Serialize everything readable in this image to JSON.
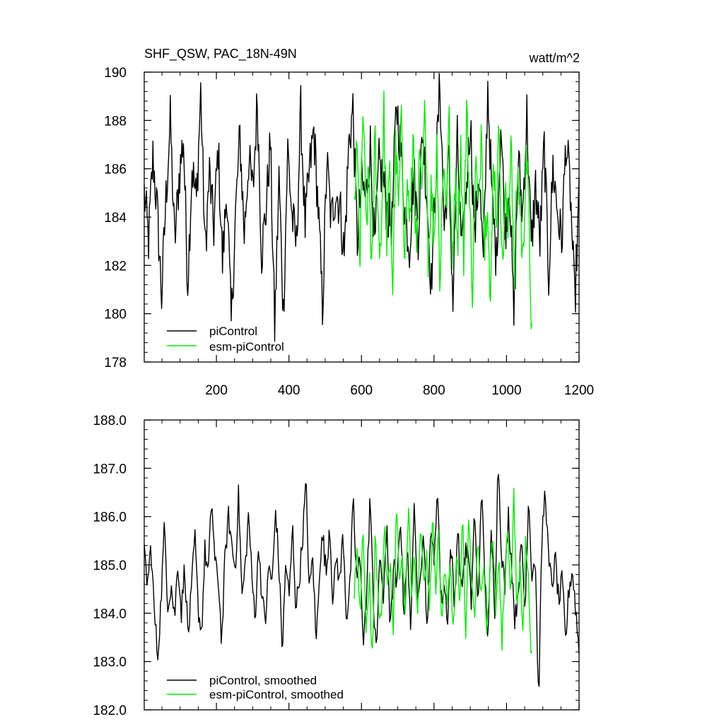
{
  "chart_data": [
    {
      "type": "line",
      "title": "SHF_QSW, PAC_18N-49N",
      "units": "watt/m^2",
      "xlim": [
        1,
        1200
      ],
      "ylim": [
        178,
        190
      ],
      "yticks": [
        178,
        180,
        182,
        184,
        186,
        188,
        190
      ],
      "ytick_labels": [
        "178",
        "180",
        "182",
        "184",
        "186",
        "188",
        "190"
      ],
      "xticks": [
        200,
        400,
        600,
        800,
        1000,
        1200
      ],
      "xtick_labels": [
        "200",
        "400",
        "600",
        "800",
        "1000",
        "1200"
      ],
      "grid": false,
      "legend_placement": "bottom-left",
      "series": [
        {
          "name": "piControl",
          "color": "#000000",
          "x_start": 1,
          "x_end": 1200,
          "mean": 185.0,
          "spread": 1.4,
          "values": [
            185.0,
            183.0,
            186.5,
            184.2,
            180.7,
            184.8,
            188.0,
            182.9,
            185.6,
            187.3,
            181.3,
            186.1,
            184.6,
            189.2,
            182.6,
            185.8,
            183.5,
            186.9,
            182.1,
            185.2,
            179.5,
            184.1,
            187.4,
            183.3,
            186.4,
            185.0,
            188.9,
            182.5,
            184.3,
            187.1,
            179.4,
            185.6,
            180.0,
            186.8,
            184.0,
            182.8,
            188.4,
            183.6,
            185.9,
            187.6,
            184.4,
            180.2,
            186.3,
            183.8,
            185.1,
            184.5,
            182.4,
            186.9,
            188.5,
            183.0,
            185.4,
            184.7,
            187.0,
            182.6,
            186.2,
            185.5,
            184.0,
            183.7,
            188.8,
            186.7,
            184.2,
            182.8,
            185.9,
            183.3,
            187.7,
            184.9,
            181.2,
            185.6,
            189.6,
            183.5,
            186.4,
            180.5,
            187.2,
            182.3,
            185.0,
            188.1,
            183.1,
            186.0,
            181.9,
            189.4,
            184.6,
            182.2,
            187.9,
            183.4,
            185.5,
            179.7,
            186.5,
            184.1,
            188.3,
            182.7,
            185.3,
            183.0,
            187.0,
            181.5,
            186.1,
            184.3,
            182.9,
            187.2,
            185.0,
            180.4,
            184.8
          ]
        },
        {
          "name": "esm-piControl",
          "color": "#00ee00",
          "x_start": 580,
          "x_end": 1070,
          "mean": 184.9,
          "spread": 1.6,
          "values": [
            184.5,
            186.7,
            182.1,
            188.8,
            183.4,
            185.9,
            181.4,
            187.6,
            184.0,
            182.6,
            188.5,
            183.2,
            185.7,
            181.0,
            186.9,
            184.2,
            188.1,
            182.7,
            185.4,
            183.6,
            187.8,
            181.8,
            186.1,
            184.8,
            189.0,
            182.4,
            185.2,
            183.0,
            187.3,
            180.8,
            186.6,
            184.4,
            188.3,
            181.5,
            185.8,
            183.3,
            187.0,
            182.2,
            189.2,
            184.1,
            181.0,
            186.4,
            183.8,
            188.4,
            182.6,
            185.5,
            179.7,
            186.8,
            184.0,
            187.9,
            181.6,
            185.0,
            183.2,
            188.0,
            180.9,
            186.0,
            184.6,
            181.8,
            187.2,
            183.7,
            179.0
          ]
        }
      ]
    },
    {
      "type": "line",
      "xlim": [
        1,
        1200
      ],
      "ylim": [
        182,
        188
      ],
      "yticks": [
        182,
        183,
        184,
        185,
        186,
        187,
        188
      ],
      "ytick_labels": [
        "182.0",
        "183.0",
        "184.0",
        "185.0",
        "186.0",
        "187.0",
        "188.0"
      ],
      "grid": false,
      "legend_placement": "bottom-left",
      "series": [
        {
          "name": "piControl, smoothed",
          "color": "#000000",
          "x_start": 1,
          "x_end": 1200,
          "values": [
            185.2,
            184.6,
            185.4,
            184.0,
            183.1,
            184.3,
            185.8,
            184.2,
            184.6,
            183.9,
            185.1,
            184.0,
            185.0,
            183.5,
            184.4,
            185.6,
            184.1,
            183.6,
            185.3,
            184.8,
            186.4,
            185.0,
            184.7,
            183.4,
            185.2,
            186.0,
            185.4,
            184.9,
            186.5,
            184.3,
            185.0,
            186.1,
            184.6,
            184.0,
            185.5,
            184.2,
            183.9,
            185.0,
            184.6,
            186.2,
            184.9,
            183.2,
            185.1,
            184.3,
            185.8,
            184.1,
            184.7,
            185.6,
            186.7,
            184.4,
            185.2,
            183.3,
            185.0,
            185.6,
            184.8,
            185.9,
            184.2,
            185.2,
            184.6,
            185.7,
            183.9,
            184.5,
            186.3,
            184.7,
            185.1,
            183.5,
            184.3,
            186.5,
            184.1,
            183.4,
            185.3,
            184.2,
            185.9,
            183.6,
            185.0,
            184.5,
            186.1,
            184.0,
            185.4,
            183.7,
            186.2,
            184.4,
            185.0,
            185.6,
            183.4,
            186.0,
            184.9,
            186.8,
            184.2,
            184.6,
            183.9,
            185.5,
            184.1,
            185.8,
            184.4,
            185.2,
            185.3,
            184.2,
            186.2,
            184.0,
            186.6,
            184.8,
            183.5,
            185.7,
            184.1,
            187.2,
            185.3,
            184.5,
            186.1,
            185.0,
            183.8,
            184.6,
            185.4,
            184.0,
            186.5,
            184.8,
            185.2,
            182.1,
            185.6,
            186.6,
            185.0,
            184.6,
            185.1,
            184.2,
            184.7,
            183.4,
            184.5,
            184.9,
            184.1,
            183.2
          ]
        },
        {
          "name": "esm-piControl, smoothed",
          "color": "#00ee00",
          "x_start": 580,
          "x_end": 1070,
          "values": [
            184.5,
            185.4,
            184.0,
            185.8,
            183.4,
            184.9,
            183.0,
            185.6,
            184.3,
            183.8,
            185.9,
            184.4,
            185.1,
            183.6,
            186.2,
            184.7,
            185.0,
            183.9,
            186.5,
            184.2,
            185.3,
            183.7,
            185.8,
            184.6,
            185.2,
            184.0,
            186.0,
            184.5,
            185.6,
            183.8,
            185.1,
            184.3,
            184.9,
            183.5,
            185.4,
            184.1,
            185.9,
            183.3,
            186.1,
            184.6,
            183.9,
            185.5,
            184.2,
            185.3,
            183.6,
            184.8,
            185.7,
            184.0,
            185.2,
            183.4,
            184.7,
            185.9,
            184.3,
            186.4,
            184.1,
            185.0,
            183.8,
            185.6,
            184.4,
            183.0
          ]
        }
      ]
    }
  ]
}
